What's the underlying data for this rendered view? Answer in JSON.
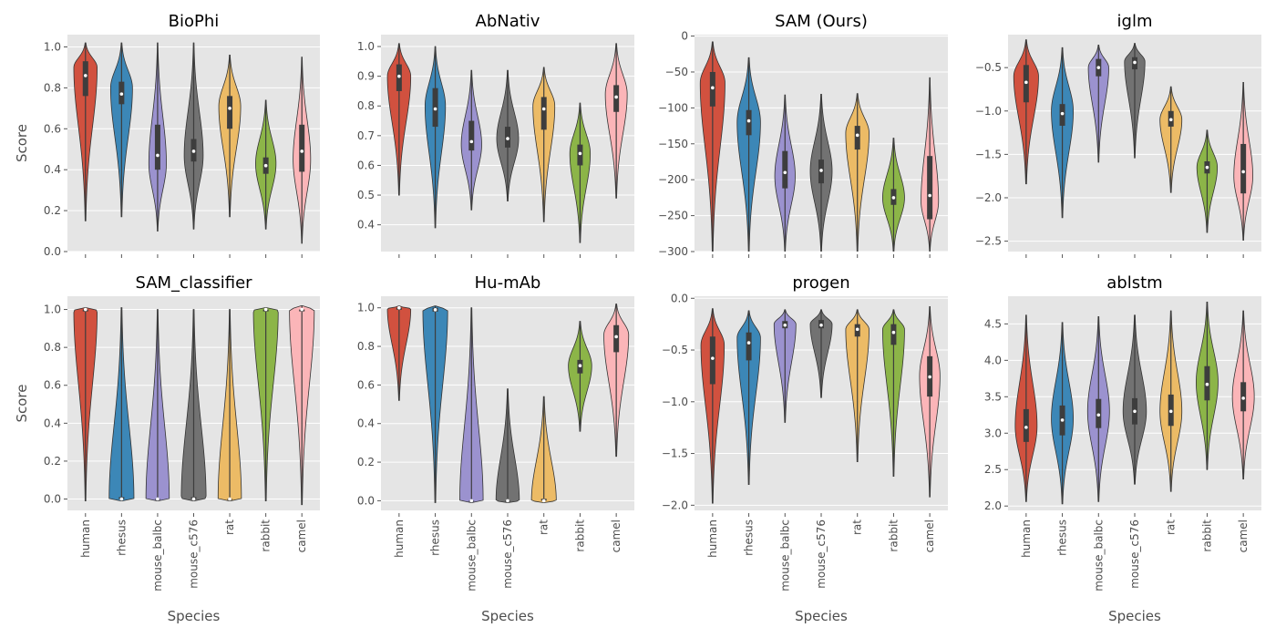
{
  "colors": {
    "human": "#d1513f",
    "rhesus": "#3c87b7",
    "mouse_balbc": "#9b92cf",
    "mouse_c576": "#727272",
    "rat": "#ecbb66",
    "rabbit": "#8cb548",
    "camel": "#fbb5b8"
  },
  "chart_data": [
    {
      "type": "violin",
      "title": "BioPhi",
      "ylabel": "Score",
      "xlabel": "",
      "ylim": [
        0,
        1.06
      ],
      "yticks": [
        0,
        0.2,
        0.4,
        0.6,
        0.8,
        1.0
      ],
      "ytick_labels": [
        "0.0",
        "0.2",
        "0.4",
        "0.6",
        "0.8",
        "1.0"
      ],
      "categories": [
        "human",
        "rhesus",
        "mouse_balbc",
        "mouse_c576",
        "rat",
        "rabbit",
        "camel"
      ],
      "violins": [
        {
          "min": 0.15,
          "max": 1.02,
          "q1": 0.76,
          "median": 0.86,
          "q3": 0.93,
          "mode": 0.9,
          "width": 0.8
        },
        {
          "min": 0.17,
          "max": 1.02,
          "q1": 0.72,
          "median": 0.77,
          "q3": 0.83,
          "mode": 0.8,
          "width": 0.75
        },
        {
          "min": 0.1,
          "max": 1.02,
          "q1": 0.4,
          "median": 0.47,
          "q3": 0.62,
          "mode": 0.43,
          "width": 0.6
        },
        {
          "min": 0.11,
          "max": 1.02,
          "q1": 0.44,
          "median": 0.49,
          "q3": 0.55,
          "mode": 0.47,
          "width": 0.65
        },
        {
          "min": 0.17,
          "max": 0.96,
          "q1": 0.6,
          "median": 0.7,
          "q3": 0.76,
          "mode": 0.71,
          "width": 0.75
        },
        {
          "min": 0.11,
          "max": 0.74,
          "q1": 0.38,
          "median": 0.42,
          "q3": 0.46,
          "mode": 0.43,
          "width": 0.7
        },
        {
          "min": 0.04,
          "max": 0.95,
          "q1": 0.39,
          "median": 0.49,
          "q3": 0.62,
          "mode": 0.45,
          "width": 0.6
        }
      ]
    },
    {
      "type": "violin",
      "title": "AbNativ",
      "ylabel": "",
      "xlabel": "",
      "ylim": [
        0.31,
        1.04
      ],
      "yticks": [
        0.4,
        0.5,
        0.6,
        0.7,
        0.8,
        0.9,
        1.0
      ],
      "ytick_labels": [
        "0.4",
        "0.5",
        "0.6",
        "0.7",
        "0.8",
        "0.9",
        "1.0"
      ],
      "categories": [
        "human",
        "rhesus",
        "mouse_balbc",
        "mouse_c576",
        "rat",
        "rabbit",
        "camel"
      ],
      "violins": [
        {
          "min": 0.5,
          "max": 1.01,
          "q1": 0.85,
          "median": 0.9,
          "q3": 0.94,
          "mode": 0.9,
          "width": 0.8
        },
        {
          "min": 0.39,
          "max": 1.0,
          "q1": 0.73,
          "median": 0.79,
          "q3": 0.86,
          "mode": 0.8,
          "width": 0.7
        },
        {
          "min": 0.45,
          "max": 0.92,
          "q1": 0.65,
          "median": 0.68,
          "q3": 0.75,
          "mode": 0.67,
          "width": 0.7
        },
        {
          "min": 0.48,
          "max": 0.92,
          "q1": 0.66,
          "median": 0.69,
          "q3": 0.73,
          "mode": 0.69,
          "width": 0.75
        },
        {
          "min": 0.41,
          "max": 0.93,
          "q1": 0.72,
          "median": 0.79,
          "q3": 0.83,
          "mode": 0.8,
          "width": 0.75
        },
        {
          "min": 0.34,
          "max": 0.81,
          "q1": 0.6,
          "median": 0.64,
          "q3": 0.67,
          "mode": 0.64,
          "width": 0.7
        },
        {
          "min": 0.49,
          "max": 1.01,
          "q1": 0.78,
          "median": 0.83,
          "q3": 0.87,
          "mode": 0.84,
          "width": 0.75
        }
      ]
    },
    {
      "type": "violin",
      "title": "SAM (Ours)",
      "ylabel": "",
      "xlabel": "",
      "ylim": [
        -300,
        2
      ],
      "yticks": [
        -300,
        -250,
        -200,
        -150,
        -100,
        -50,
        0
      ],
      "ytick_labels": [
        "−300",
        "−250",
        "−200",
        "−150",
        "−100",
        "−50",
        "0"
      ],
      "categories": [
        "human",
        "rhesus",
        "mouse_balbc",
        "mouse_c576",
        "rat",
        "rabbit",
        "camel"
      ],
      "violins": [
        {
          "min": -300,
          "max": -8,
          "q1": -98,
          "median": -72,
          "q3": -50,
          "mode": -65,
          "width": 0.85
        },
        {
          "min": -300,
          "max": -30,
          "q1": -138,
          "median": -118,
          "q3": -103,
          "mode": -120,
          "width": 0.8
        },
        {
          "min": -300,
          "max": -82,
          "q1": -212,
          "median": -190,
          "q3": -160,
          "mode": -195,
          "width": 0.7
        },
        {
          "min": -300,
          "max": -81,
          "q1": -205,
          "median": -187,
          "q3": -172,
          "mode": -188,
          "width": 0.75
        },
        {
          "min": -300,
          "max": -80,
          "q1": -158,
          "median": -138,
          "q3": -125,
          "mode": -135,
          "width": 0.8
        },
        {
          "min": -300,
          "max": -142,
          "q1": -235,
          "median": -225,
          "q3": -213,
          "mode": -225,
          "width": 0.75
        },
        {
          "min": -300,
          "max": -58,
          "q1": -255,
          "median": -222,
          "q3": -167,
          "mode": -230,
          "width": 0.6
        }
      ]
    },
    {
      "type": "violin",
      "title": "iglm",
      "ylabel": "",
      "xlabel": "",
      "ylim": [
        -2.62,
        -0.12
      ],
      "yticks": [
        -2.5,
        -2.0,
        -1.5,
        -1.0,
        -0.5
      ],
      "ytick_labels": [
        "−2.5",
        "−2.0",
        "−1.5",
        "−1.0",
        "−0.5"
      ],
      "categories": [
        "human",
        "rhesus",
        "mouse_balbc",
        "mouse_c576",
        "rat",
        "rabbit",
        "camel"
      ],
      "violins": [
        {
          "min": -1.84,
          "max": -0.18,
          "q1": -0.9,
          "median": -0.67,
          "q3": -0.47,
          "mode": -0.6,
          "width": 0.85
        },
        {
          "min": -2.23,
          "max": -0.27,
          "q1": -1.17,
          "median": -1.03,
          "q3": -0.92,
          "mode": -1.0,
          "width": 0.75
        },
        {
          "min": -1.59,
          "max": -0.24,
          "q1": -0.6,
          "median": -0.5,
          "q3": -0.4,
          "mode": -0.5,
          "width": 0.7
        },
        {
          "min": -1.54,
          "max": -0.22,
          "q1": -0.52,
          "median": -0.44,
          "q3": -0.38,
          "mode": -0.43,
          "width": 0.7
        },
        {
          "min": -1.94,
          "max": -0.72,
          "q1": -1.18,
          "median": -1.1,
          "q3": -1.0,
          "mode": -1.1,
          "width": 0.75
        },
        {
          "min": -2.4,
          "max": -1.22,
          "q1": -1.72,
          "median": -1.65,
          "q3": -1.58,
          "mode": -1.65,
          "width": 0.7
        },
        {
          "min": -2.49,
          "max": -0.67,
          "q1": -1.95,
          "median": -1.7,
          "q3": -1.38,
          "mode": -1.75,
          "width": 0.65
        }
      ]
    },
    {
      "type": "violin",
      "title": "SAM_classifier",
      "ylabel": "Score",
      "xlabel": "Species",
      "ylim": [
        -0.06,
        1.07
      ],
      "yticks": [
        0,
        0.2,
        0.4,
        0.6,
        0.8,
        1.0
      ],
      "ytick_labels": [
        "0.0",
        "0.2",
        "0.4",
        "0.6",
        "0.8",
        "1.0"
      ],
      "categories": [
        "human",
        "rhesus",
        "mouse_balbc",
        "mouse_c576",
        "rat",
        "rabbit",
        "camel"
      ],
      "violins": [
        {
          "min": -0.01,
          "max": 1.01,
          "q1": 0.99,
          "median": 1.0,
          "q3": 1.0,
          "mode": 0.995,
          "width": 0.8
        },
        {
          "min": -0.01,
          "max": 1.01,
          "q1": 0.0,
          "median": 0.0,
          "q3": 0.01,
          "mode": 0.0,
          "width": 0.85
        },
        {
          "min": -0.01,
          "max": 1.0,
          "q1": 0.0,
          "median": 0.0,
          "q3": 0.0,
          "mode": 0.0,
          "width": 0.8
        },
        {
          "min": -0.01,
          "max": 1.0,
          "q1": 0.0,
          "median": 0.0,
          "q3": 0.01,
          "mode": 0.005,
          "width": 0.85
        },
        {
          "min": -0.01,
          "max": 1.0,
          "q1": 0.0,
          "median": 0.0,
          "q3": 0.0,
          "mode": 0.0,
          "width": 0.8
        },
        {
          "min": -0.01,
          "max": 1.01,
          "q1": 0.99,
          "median": 1.0,
          "q3": 1.0,
          "mode": 0.995,
          "width": 0.85
        },
        {
          "min": -0.03,
          "max": 1.02,
          "q1": 0.99,
          "median": 1.0,
          "q3": 1.0,
          "mode": 1.0,
          "width": 0.85
        }
      ]
    },
    {
      "type": "violin",
      "title": "Hu-mAb",
      "ylabel": "",
      "xlabel": "Species",
      "ylim": [
        -0.05,
        1.06
      ],
      "yticks": [
        0,
        0.2,
        0.4,
        0.6,
        0.8,
        1.0
      ],
      "ytick_labels": [
        "0.0",
        "0.2",
        "0.4",
        "0.6",
        "0.8",
        "1.0"
      ],
      "categories": [
        "human",
        "rhesus",
        "mouse_balbc",
        "mouse_c576",
        "rat",
        "rabbit",
        "camel"
      ],
      "violins": [
        {
          "min": 0.52,
          "max": 1.01,
          "q1": 0.99,
          "median": 1.0,
          "q3": 1.0,
          "mode": 0.995,
          "width": 0.8
        },
        {
          "min": -0.01,
          "max": 1.01,
          "q1": 0.98,
          "median": 0.99,
          "q3": 1.0,
          "mode": 0.99,
          "width": 0.85
        },
        {
          "min": -0.01,
          "max": 1.0,
          "q1": 0.0,
          "median": 0.0,
          "q3": 0.0,
          "mode": 0.0,
          "width": 0.8
        },
        {
          "min": -0.01,
          "max": 0.58,
          "q1": 0.0,
          "median": 0.0,
          "q3": 0.0,
          "mode": 0.0,
          "width": 0.8
        },
        {
          "min": -0.01,
          "max": 0.54,
          "q1": 0.0,
          "median": 0.0,
          "q3": 0.01,
          "mode": 0.0,
          "width": 0.85
        },
        {
          "min": 0.36,
          "max": 0.93,
          "q1": 0.66,
          "median": 0.7,
          "q3": 0.73,
          "mode": 0.7,
          "width": 0.8
        },
        {
          "min": 0.23,
          "max": 1.02,
          "q1": 0.77,
          "median": 0.85,
          "q3": 0.91,
          "mode": 0.86,
          "width": 0.85
        }
      ]
    },
    {
      "type": "violin",
      "title": "progen",
      "ylabel": "",
      "xlabel": "Species",
      "ylim": [
        -2.05,
        0.02
      ],
      "yticks": [
        -2.0,
        -1.5,
        -1.0,
        -0.5,
        0.0
      ],
      "ytick_labels": [
        "−2.0",
        "−1.5",
        "−1.0",
        "−0.5",
        "0.0"
      ],
      "categories": [
        "human",
        "rhesus",
        "mouse_balbc",
        "mouse_c576",
        "rat",
        "rabbit",
        "camel"
      ],
      "violins": [
        {
          "min": -1.98,
          "max": -0.1,
          "q1": -0.83,
          "median": -0.58,
          "q3": -0.37,
          "mode": -0.45,
          "width": 0.8
        },
        {
          "min": -1.8,
          "max": -0.12,
          "q1": -0.6,
          "median": -0.43,
          "q3": -0.33,
          "mode": -0.38,
          "width": 0.8
        },
        {
          "min": -1.2,
          "max": -0.11,
          "q1": -0.29,
          "median": -0.26,
          "q3": -0.22,
          "mode": -0.25,
          "width": 0.75
        },
        {
          "min": -0.96,
          "max": -0.11,
          "q1": -0.29,
          "median": -0.26,
          "q3": -0.21,
          "mode": -0.25,
          "width": 0.75
        },
        {
          "min": -1.58,
          "max": -0.11,
          "q1": -0.37,
          "median": -0.3,
          "q3": -0.25,
          "mode": -0.3,
          "width": 0.8
        },
        {
          "min": -1.72,
          "max": -0.11,
          "q1": -0.45,
          "median": -0.33,
          "q3": -0.25,
          "mode": -0.3,
          "width": 0.75
        },
        {
          "min": -1.92,
          "max": -0.08,
          "q1": -0.95,
          "median": -0.76,
          "q3": -0.56,
          "mode": -0.75,
          "width": 0.7
        }
      ]
    },
    {
      "type": "violin",
      "title": "ablstm",
      "ylabel": "",
      "xlabel": "Species",
      "ylim": [
        1.94,
        4.88
      ],
      "yticks": [
        2.0,
        2.5,
        3.0,
        3.5,
        4.0,
        4.5
      ],
      "ytick_labels": [
        "2.0",
        "2.5",
        "3.0",
        "3.5",
        "4.0",
        "4.5"
      ],
      "categories": [
        "human",
        "rhesus",
        "mouse_balbc",
        "mouse_c576",
        "rat",
        "rabbit",
        "camel"
      ],
      "violins": [
        {
          "min": 2.06,
          "max": 4.62,
          "q1": 2.88,
          "median": 3.08,
          "q3": 3.33,
          "mode": 3.1,
          "width": 0.75
        },
        {
          "min": 2.03,
          "max": 4.52,
          "q1": 2.97,
          "median": 3.18,
          "q3": 3.38,
          "mode": 3.2,
          "width": 0.75
        },
        {
          "min": 2.06,
          "max": 4.6,
          "q1": 3.07,
          "median": 3.25,
          "q3": 3.47,
          "mode": 3.3,
          "width": 0.75
        },
        {
          "min": 2.3,
          "max": 4.62,
          "q1": 3.12,
          "median": 3.3,
          "q3": 3.48,
          "mode": 3.3,
          "width": 0.8
        },
        {
          "min": 2.2,
          "max": 4.68,
          "q1": 3.1,
          "median": 3.3,
          "q3": 3.53,
          "mode": 3.3,
          "width": 0.75
        },
        {
          "min": 2.5,
          "max": 4.8,
          "q1": 3.45,
          "median": 3.67,
          "q3": 3.92,
          "mode": 3.7,
          "width": 0.75
        },
        {
          "min": 2.37,
          "max": 4.68,
          "q1": 3.3,
          "median": 3.48,
          "q3": 3.7,
          "mode": 3.5,
          "width": 0.75
        }
      ]
    }
  ]
}
